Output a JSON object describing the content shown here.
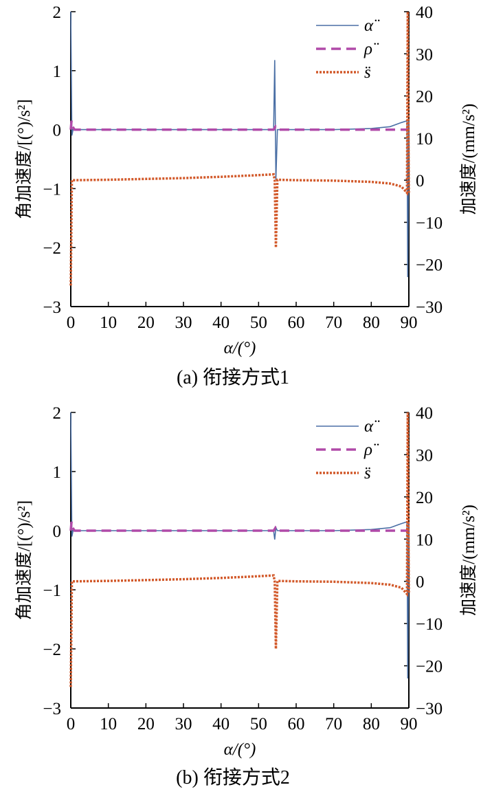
{
  "figure": {
    "charts": [
      {
        "caption": "(a) 衔接方式1"
      },
      {
        "caption": "(b) 衔接方式2"
      }
    ],
    "left_ylabel": "角加速度/[(°)/s²]",
    "right_ylabel": "加速度/(mm/s²)",
    "xlabel": "α/(°)",
    "legend": [
      "α̈",
      "ρ̈",
      "s̈"
    ],
    "colors": {
      "alpha": "#4a6fa5",
      "rho": "#b04aa8",
      "s": "#d2592a"
    }
  },
  "chart_data": [
    {
      "type": "line",
      "title": "(a) 衔接方式1",
      "xlabel": "α/(°)",
      "ylabel_left": "角加速度/[(°)/s²]",
      "ylabel_right": "加速度/(mm/s²)",
      "xlim": [
        0,
        90
      ],
      "ylim_left": [
        -3,
        2
      ],
      "ylim_right": [
        -30,
        40
      ],
      "xticks": [
        0,
        10,
        20,
        30,
        40,
        50,
        60,
        70,
        80,
        90
      ],
      "yticks_left": [
        -3,
        -2,
        -1,
        0,
        1,
        2
      ],
      "yticks_right": [
        -30,
        -20,
        -10,
        0,
        10,
        20,
        30,
        40
      ],
      "legend_position": "top-right",
      "grid": false,
      "series": [
        {
          "name": "α̈",
          "axis": "left",
          "style": "solid",
          "x": [
            0,
            0.3,
            0.6,
            1,
            10,
            20,
            30,
            40,
            50,
            54,
            54.3,
            54.6,
            55,
            60,
            70,
            80,
            85,
            88,
            89.5,
            89.7,
            90
          ],
          "y": [
            2.0,
            -0.1,
            0.0,
            0.0,
            0.0,
            0.0,
            0.0,
            0.0,
            0.0,
            0.0,
            1.18,
            -0.85,
            0.0,
            0.0,
            0.0,
            0.02,
            0.05,
            0.12,
            0.15,
            -2.5,
            0.15
          ]
        },
        {
          "name": "ρ̈",
          "axis": "left",
          "style": "dashed",
          "x": [
            0,
            0.2,
            0.5,
            1,
            10,
            50,
            54,
            54.5,
            55,
            80,
            90
          ],
          "y": [
            0.0,
            0.15,
            0.05,
            0.0,
            0.0,
            0.0,
            0.0,
            0.05,
            0.0,
            0.0,
            0.0
          ]
        },
        {
          "name": "s̈",
          "axis": "right",
          "style": "dotted",
          "x": [
            0,
            0.3,
            1,
            10,
            20,
            30,
            40,
            50,
            54,
            54.3,
            54.6,
            55,
            60,
            70,
            80,
            85,
            88,
            89.5,
            89.7,
            90
          ],
          "y": [
            -25,
            0.0,
            0.0,
            0.1,
            0.3,
            0.5,
            0.8,
            1.2,
            1.4,
            0.0,
            -16,
            0.1,
            0.0,
            -0.1,
            -0.4,
            -0.8,
            -1.5,
            -3.0,
            40,
            -3.0
          ]
        }
      ]
    },
    {
      "type": "line",
      "title": "(b) 衔接方式2",
      "xlabel": "α/(°)",
      "ylabel_left": "角加速度/[(°)/s²]",
      "ylabel_right": "加速度/(mm/s²)",
      "xlim": [
        0,
        90
      ],
      "ylim_left": [
        -3,
        2
      ],
      "ylim_right": [
        -30,
        40
      ],
      "xticks": [
        0,
        10,
        20,
        30,
        40,
        50,
        60,
        70,
        80,
        90
      ],
      "yticks_left": [
        -3,
        -2,
        -1,
        0,
        1,
        2
      ],
      "yticks_right": [
        -30,
        -20,
        -10,
        0,
        10,
        20,
        30,
        40
      ],
      "legend_position": "top-right",
      "grid": false,
      "series": [
        {
          "name": "α̈",
          "axis": "left",
          "style": "solid",
          "x": [
            0,
            0.3,
            0.6,
            1,
            10,
            20,
            30,
            40,
            50,
            54,
            54.3,
            54.6,
            55,
            60,
            70,
            80,
            85,
            88,
            89.5,
            89.7,
            90
          ],
          "y": [
            2.0,
            -0.1,
            0.0,
            0.0,
            0.0,
            0.0,
            0.0,
            0.0,
            0.0,
            0.0,
            -0.15,
            0.05,
            0.0,
            0.0,
            0.0,
            0.02,
            0.05,
            0.12,
            0.15,
            -2.5,
            0.15
          ]
        },
        {
          "name": "ρ̈",
          "axis": "left",
          "style": "dashed",
          "x": [
            0,
            0.2,
            0.5,
            1,
            10,
            50,
            54,
            54.5,
            55,
            80,
            90
          ],
          "y": [
            0.0,
            0.15,
            0.05,
            0.0,
            0.0,
            0.0,
            0.0,
            0.05,
            0.0,
            0.0,
            0.0
          ]
        },
        {
          "name": "s̈",
          "axis": "right",
          "style": "dotted",
          "x": [
            0,
            0.3,
            1,
            10,
            20,
            30,
            40,
            50,
            54,
            54.3,
            54.6,
            55,
            60,
            70,
            80,
            85,
            88,
            89.5,
            89.7,
            90
          ],
          "y": [
            -25,
            0.0,
            0.0,
            0.1,
            0.3,
            0.5,
            0.8,
            1.2,
            1.4,
            0.0,
            -16,
            0.1,
            0.0,
            -0.1,
            -0.4,
            -0.8,
            -1.5,
            -3.0,
            40,
            -3.0
          ]
        }
      ]
    }
  ]
}
